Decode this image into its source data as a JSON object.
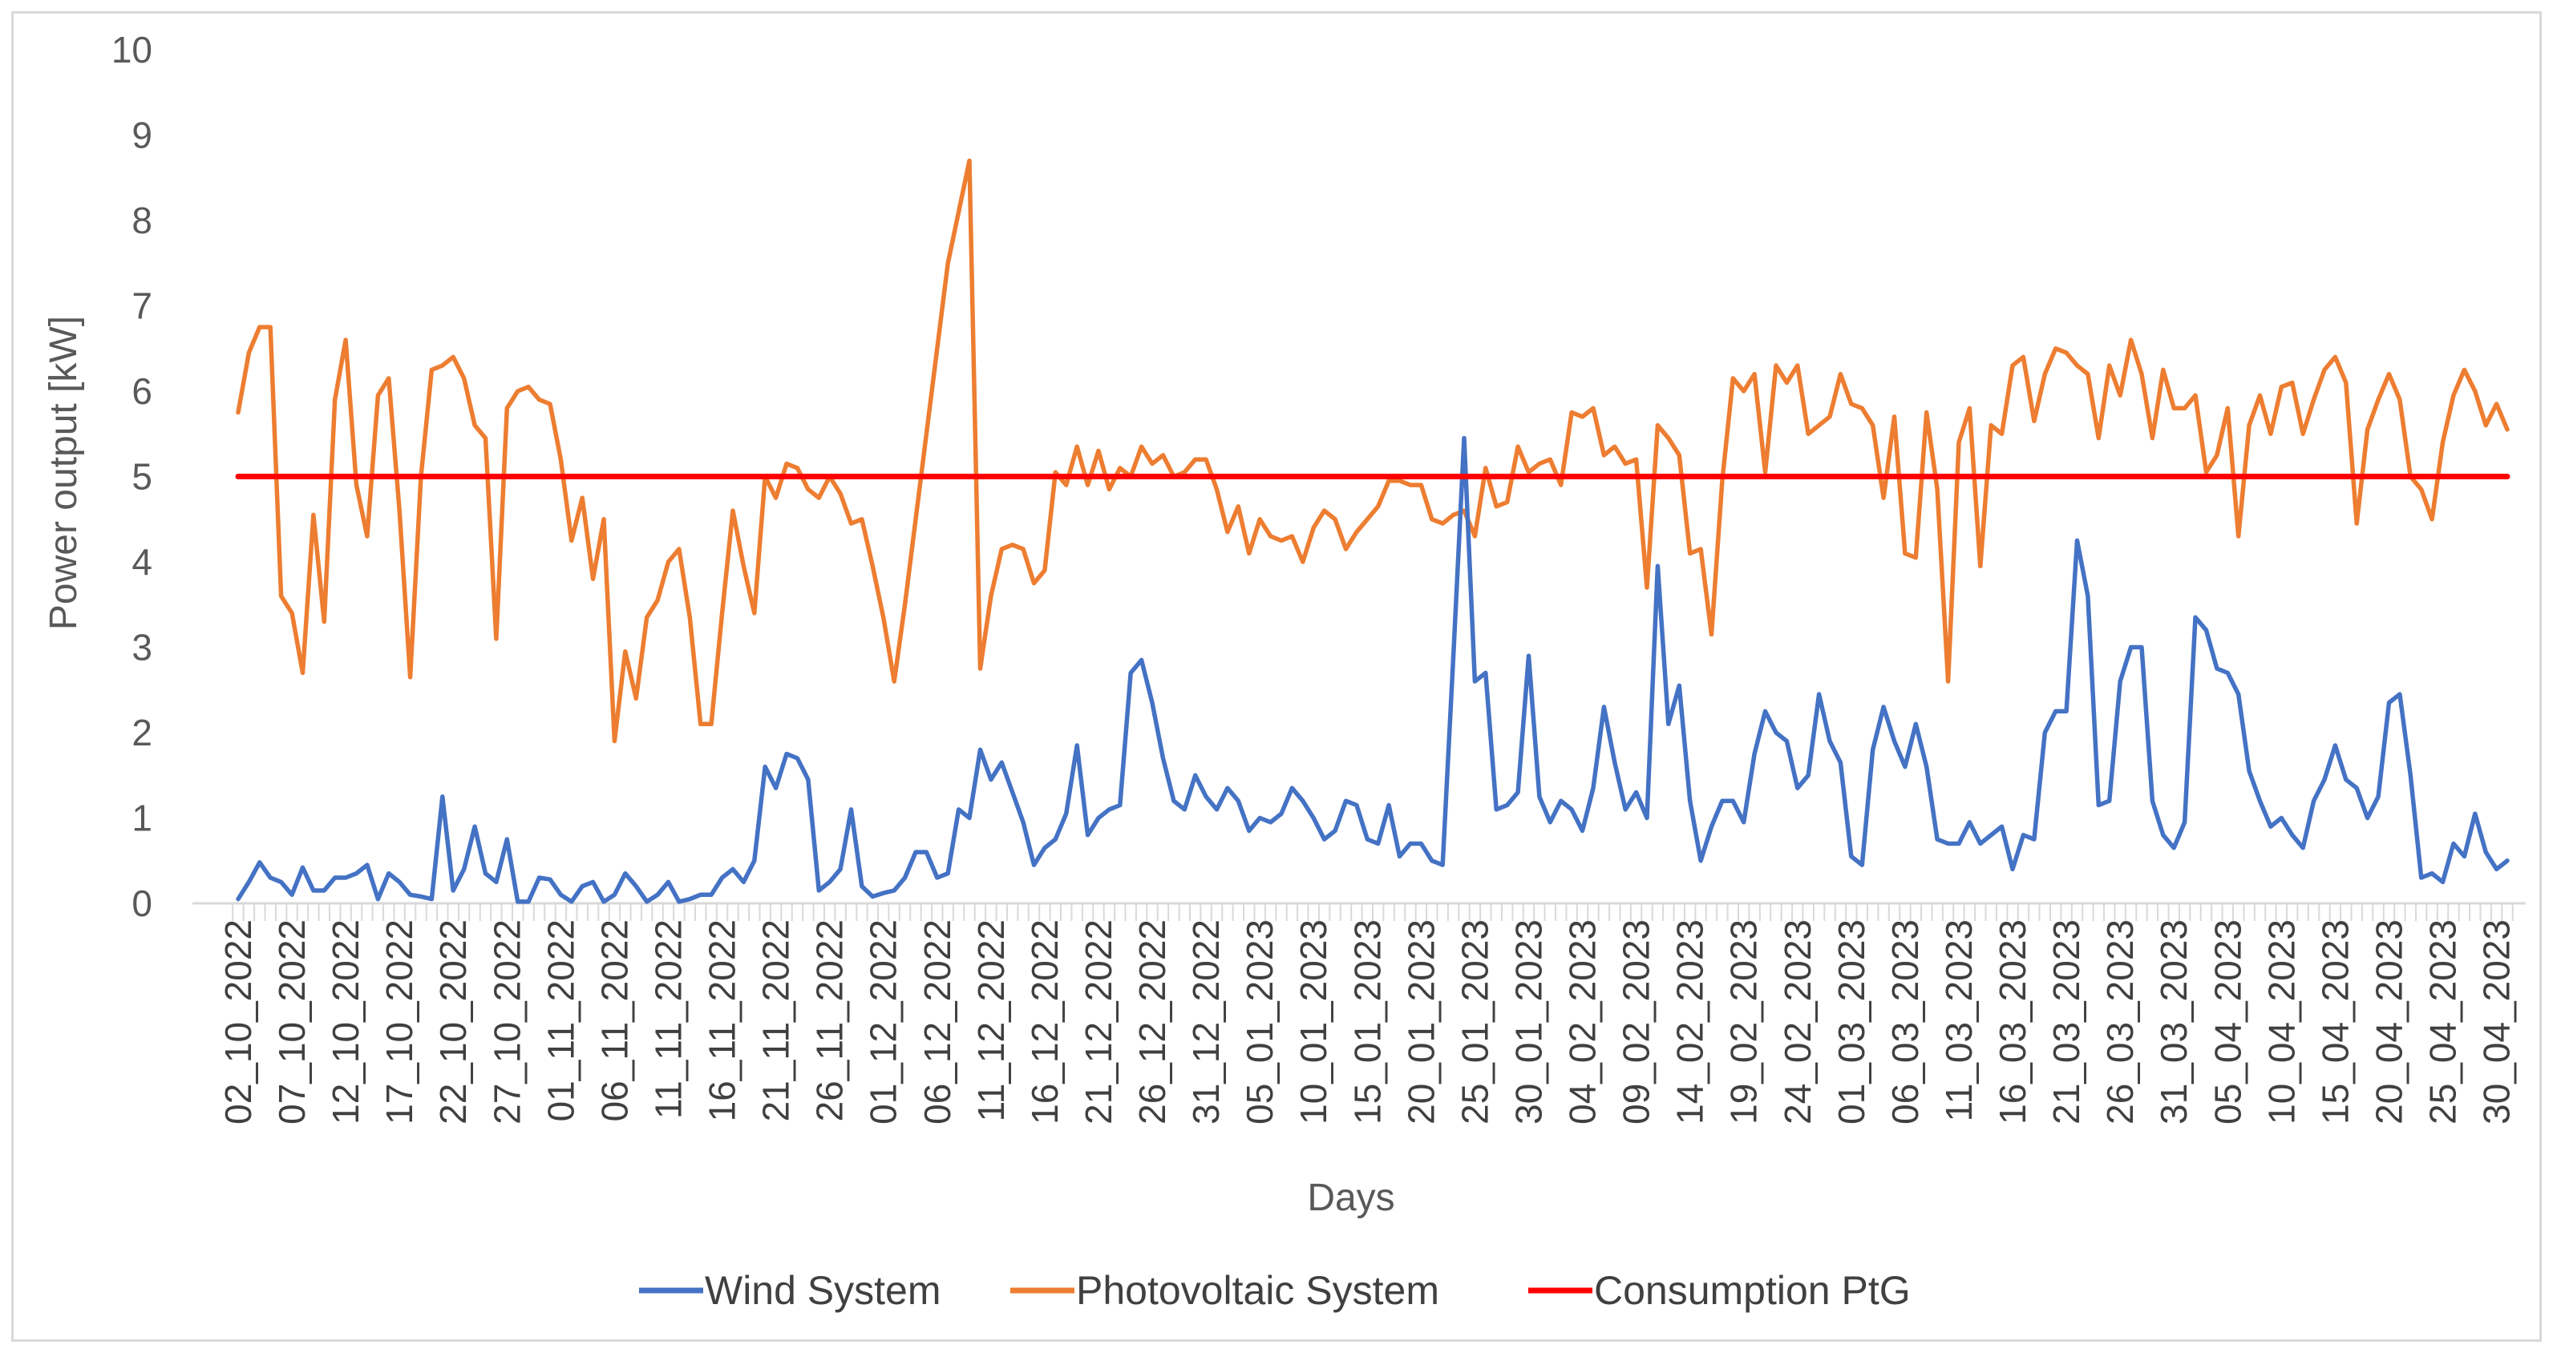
{
  "chart_data": {
    "type": "line",
    "title": "",
    "xlabel": "Days",
    "ylabel": "Power output [kW]",
    "ylim": [
      0,
      10
    ],
    "y_ticks": [
      "0",
      "1",
      "2",
      "3",
      "4",
      "5",
      "6",
      "7",
      "8",
      "9",
      "10"
    ],
    "grid": false,
    "legend_position": "bottom",
    "x_tick_labels": [
      "02_10_2022",
      "07_10_2022",
      "12_10_2022",
      "17_10_2022",
      "22_10_2022",
      "27_10_2022",
      "01_11_2022",
      "06_11_2022",
      "11_11_2022",
      "16_11_2022",
      "21_11_2022",
      "26_11_2022",
      "01_12_2022",
      "06_12_2022",
      "11_12_2022",
      "16_12_2022",
      "21_12_2022",
      "26_12_2022",
      "31_12_2022",
      "05_01_2023",
      "10_01_2023",
      "15_01_2023",
      "20_01_2023",
      "25_01_2023",
      "30_01_2023",
      "04_02_2023",
      "09_02_2023",
      "14_02_2023",
      "19_02_2023",
      "24_02_2023",
      "01_03_2023",
      "06_03_2023",
      "11_03_2023",
      "16_03_2023",
      "21_03_2023",
      "26_03_2023",
      "31_03_2023",
      "05_04_2023",
      "10_04_2023",
      "15_04_2023",
      "20_04_2023",
      "25_04_2023",
      "30_04_2023"
    ],
    "series": [
      {
        "name": "Wind System",
        "color": "#4472C4",
        "values": [
          0.05,
          0.25,
          0.48,
          0.3,
          0.25,
          0.1,
          0.42,
          0.15,
          0.15,
          0.3,
          0.3,
          0.35,
          0.45,
          0.05,
          0.35,
          0.25,
          0.1,
          0.08,
          0.05,
          1.25,
          0.15,
          0.4,
          0.9,
          0.35,
          0.25,
          0.75,
          0.02,
          0.02,
          0.3,
          0.28,
          0.1,
          0.02,
          0.2,
          0.25,
          0.02,
          0.1,
          0.35,
          0.2,
          0.02,
          0.1,
          0.25,
          0.02,
          0.05,
          0.1,
          0.1,
          0.3,
          0.4,
          0.25,
          0.5,
          1.6,
          1.35,
          1.75,
          1.7,
          1.45,
          0.15,
          0.25,
          0.4,
          1.1,
          0.2,
          0.08,
          0.12,
          0.15,
          0.3,
          0.6,
          0.6,
          0.3,
          0.35,
          1.1,
          1.0,
          1.8,
          1.45,
          1.65,
          1.3,
          0.95,
          0.45,
          0.65,
          0.75,
          1.05,
          1.85,
          0.8,
          1.0,
          1.1,
          1.15,
          2.7,
          2.85,
          2.35,
          1.7,
          1.2,
          1.1,
          1.5,
          1.25,
          1.1,
          1.35,
          1.2,
          0.85,
          1.0,
          0.95,
          1.05,
          1.35,
          1.2,
          1.0,
          0.75,
          0.85,
          1.2,
          1.15,
          0.75,
          0.7,
          1.15,
          0.55,
          0.7,
          0.7,
          0.5,
          0.45,
          2.9,
          5.45,
          2.6,
          2.7,
          1.1,
          1.15,
          1.3,
          2.9,
          1.25,
          0.95,
          1.2,
          1.1,
          0.85,
          1.35,
          2.3,
          1.65,
          1.1,
          1.3,
          1.0,
          3.95,
          2.1,
          2.55,
          1.2,
          0.5,
          0.9,
          1.2,
          1.2,
          0.95,
          1.75,
          2.25,
          2.0,
          1.9,
          1.35,
          1.5,
          2.45,
          1.9,
          1.65,
          0.55,
          0.45,
          1.8,
          2.3,
          1.9,
          1.6,
          2.1,
          1.6,
          0.75,
          0.7,
          0.7,
          0.95,
          0.7,
          0.8,
          0.9,
          0.4,
          0.8,
          0.75,
          2.0,
          2.25,
          2.25,
          4.25,
          3.6,
          1.15,
          1.2,
          2.6,
          3.0,
          3.0,
          1.2,
          0.8,
          0.65,
          0.95,
          3.35,
          3.2,
          2.75,
          2.7,
          2.45,
          1.55,
          1.2,
          0.9,
          1.0,
          0.8,
          0.65,
          1.2,
          1.45,
          1.85,
          1.45,
          1.35,
          1.0,
          1.25,
          2.35,
          2.45,
          1.5,
          0.3,
          0.35,
          0.25,
          0.7,
          0.55,
          1.05,
          0.6,
          0.4,
          0.5
        ]
      },
      {
        "name": "Photovoltaic System",
        "color": "#ED7D31",
        "values": [
          5.75,
          6.45,
          6.75,
          6.75,
          3.6,
          3.4,
          2.7,
          4.55,
          3.3,
          5.9,
          6.6,
          4.9,
          4.3,
          5.95,
          6.15,
          4.6,
          2.65,
          5.0,
          6.25,
          6.3,
          6.4,
          6.15,
          5.6,
          5.45,
          3.1,
          5.8,
          6.0,
          6.05,
          5.9,
          5.85,
          5.2,
          4.25,
          4.75,
          3.8,
          4.5,
          1.9,
          2.95,
          2.4,
          3.35,
          3.55,
          4.0,
          4.15,
          3.35,
          2.1,
          2.1,
          3.4,
          4.6,
          3.95,
          3.4,
          5.0,
          4.75,
          5.15,
          5.1,
          4.85,
          4.75,
          5.0,
          4.8,
          4.45,
          4.5,
          3.95,
          3.35,
          2.6,
          3.5,
          4.5,
          5.5,
          6.5,
          7.5,
          8.1,
          8.7,
          2.75,
          3.6,
          4.15,
          4.2,
          4.15,
          3.75,
          3.9,
          5.05,
          4.9,
          5.35,
          4.9,
          5.3,
          4.85,
          5.1,
          5.0,
          5.35,
          5.15,
          5.25,
          5.0,
          5.05,
          5.2,
          5.2,
          4.85,
          4.35,
          4.65,
          4.1,
          4.5,
          4.3,
          4.25,
          4.3,
          4.0,
          4.4,
          4.6,
          4.5,
          4.15,
          4.35,
          4.5,
          4.65,
          4.95,
          4.95,
          4.9,
          4.9,
          4.5,
          4.45,
          4.55,
          4.6,
          4.3,
          5.1,
          4.65,
          4.7,
          5.35,
          5.05,
          5.15,
          5.2,
          4.9,
          5.75,
          5.7,
          5.8,
          5.25,
          5.35,
          5.15,
          5.2,
          3.7,
          5.6,
          5.45,
          5.25,
          4.1,
          4.15,
          3.15,
          4.95,
          6.15,
          6.0,
          6.2,
          5.05,
          6.3,
          6.1,
          6.3,
          5.5,
          5.6,
          5.7,
          6.2,
          5.85,
          5.8,
          5.6,
          4.75,
          5.7,
          4.1,
          4.05,
          5.75,
          4.85,
          2.6,
          5.4,
          5.8,
          3.95,
          5.6,
          5.5,
          6.3,
          6.4,
          5.65,
          6.2,
          6.5,
          6.45,
          6.3,
          6.2,
          5.45,
          6.3,
          5.95,
          6.6,
          6.2,
          5.45,
          6.25,
          5.8,
          5.8,
          5.95,
          5.05,
          5.25,
          5.8,
          4.3,
          5.6,
          5.95,
          5.5,
          6.05,
          6.1,
          5.5,
          5.9,
          6.25,
          6.4,
          6.1,
          4.45,
          5.55,
          5.9,
          6.2,
          5.9,
          5.0,
          4.85,
          4.5,
          5.4,
          5.95,
          6.25,
          6.0,
          5.6,
          5.85,
          5.55
        ]
      },
      {
        "name": "Consumption PtG",
        "color": "#FF0000",
        "values": [
          5.0,
          5.0
        ]
      }
    ]
  }
}
